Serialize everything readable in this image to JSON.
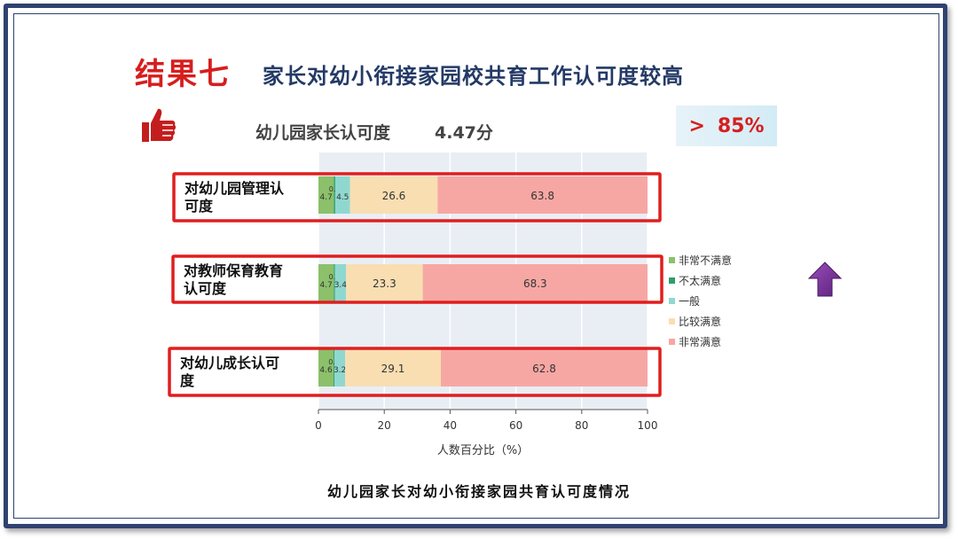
{
  "header": {
    "result_label": "结果七",
    "subtitle": "家长对幼小衔接家园校共育工作认可度较高"
  },
  "summary": {
    "score_label": "幼儿园家长认可度",
    "score_value": "4.47分",
    "badge_text": "85%",
    "badge_prefix": ">"
  },
  "icons": {
    "thumb": "thumbs-up-icon",
    "arrow": "arrow-up-icon"
  },
  "caption": "幼儿园家长对幼小衔接家园共育认可度情况",
  "chart_data": {
    "type": "bar",
    "orientation": "horizontal",
    "stacked": true,
    "categories": [
      "对幼儿园管理认可度",
      "对教师保育教育认可度",
      "对幼儿成长认可度"
    ],
    "category_lines": [
      [
        "对幼儿园管理认",
        "可度"
      ],
      [
        "对教师保育教育",
        "认可度"
      ],
      [
        "对幼儿成长认可",
        "度"
      ]
    ],
    "series": [
      {
        "name": "非常不满意",
        "color": "#8cc06a",
        "values": [
          4.7,
          4.7,
          4.6
        ]
      },
      {
        "name": "不太满意",
        "color": "#2f9e68",
        "values": [
          0.4,
          0.3,
          0.3
        ]
      },
      {
        "name": "一般",
        "color": "#8fd8d0",
        "values": [
          4.5,
          3.4,
          3.2
        ]
      },
      {
        "name": "比较满意",
        "color": "#f9deb2",
        "values": [
          26.6,
          23.3,
          29.1
        ]
      },
      {
        "name": "非常满意",
        "color": "#f7a7a3",
        "values": [
          63.8,
          68.3,
          62.8
        ]
      }
    ],
    "xlim": [
      0,
      100
    ],
    "xticks": [
      "0",
      "20",
      "40",
      "60",
      "80",
      "100"
    ],
    "xlabel": "人数百分比（%）",
    "legend_position": "right",
    "highlight_color": "#e01e1e"
  }
}
